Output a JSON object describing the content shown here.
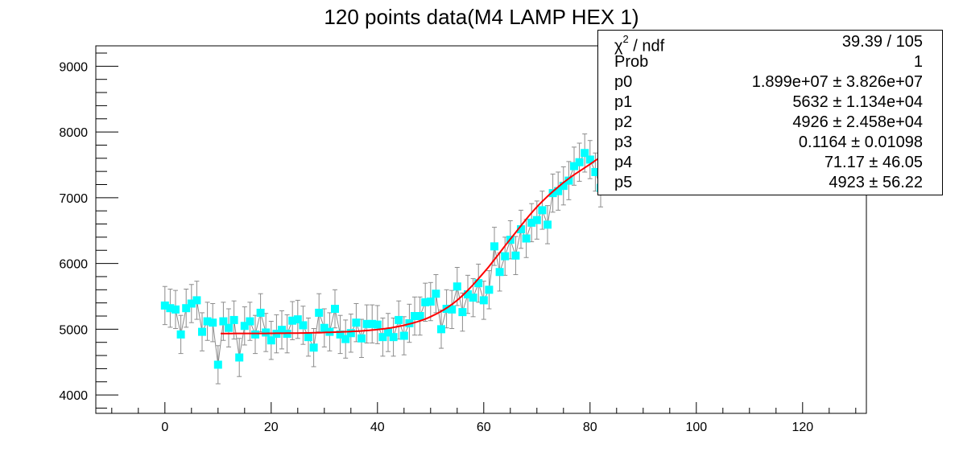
{
  "chart_data": {
    "type": "scatter",
    "title": "120 points data(M4 LAMP HEX 1)",
    "xlabel": "",
    "ylabel": "",
    "xlim": [
      -13,
      132
    ],
    "ylim": [
      3720,
      9310
    ],
    "x_ticks": [
      0,
      20,
      40,
      60,
      80,
      100,
      120
    ],
    "y_ticks": [
      4000,
      5000,
      6000,
      7000,
      8000,
      9000
    ],
    "grid": false,
    "colors": {
      "marker": "#00ffff",
      "error_bar": "#8c8c8c",
      "fit": "#ff0000"
    },
    "series": [
      {
        "x": [
          0,
          1,
          2,
          3,
          4,
          5,
          6,
          7,
          8,
          9,
          10,
          11,
          12,
          13,
          14,
          15,
          16,
          17,
          18,
          19,
          20,
          21,
          22,
          23,
          24,
          25,
          26,
          27,
          28,
          29,
          30,
          31,
          32,
          33,
          34,
          35,
          36,
          37,
          38,
          39,
          40,
          41,
          42,
          43,
          44,
          45,
          46,
          47,
          48,
          49,
          50,
          51,
          52,
          53,
          54,
          55,
          56,
          57,
          58,
          59,
          60,
          61,
          62,
          63,
          64,
          65,
          66,
          67,
          68,
          69,
          70,
          71,
          72,
          73,
          74,
          75,
          76,
          77,
          78,
          79,
          80,
          81,
          82
        ],
        "y": [
          5360,
          5320,
          5300,
          4920,
          5320,
          5390,
          5440,
          4960,
          5120,
          5100,
          4460,
          5120,
          5020,
          5140,
          4570,
          5050,
          5120,
          4920,
          5250,
          4950,
          4830,
          4930,
          4990,
          4930,
          5130,
          5150,
          5060,
          4880,
          4720,
          5250,
          5020,
          4960,
          5310,
          4920,
          4850,
          4940,
          5100,
          4860,
          5080,
          5080,
          5070,
          4880,
          4950,
          4880,
          5140,
          4900,
          5090,
          5200,
          5200,
          5410,
          5420,
          5540,
          5000,
          5310,
          5300,
          5650,
          5260,
          5530,
          5480,
          5700,
          5440,
          5600,
          6260,
          5870,
          6110,
          6360,
          6120,
          6520,
          6380,
          6620,
          6660,
          6810,
          6590,
          7070,
          7100,
          7180,
          7260,
          7480,
          7540,
          7680,
          7580,
          7390,
          7150
        ],
        "error": 290
      }
    ],
    "fit": {
      "x_start": 10.5,
      "x_end": 82,
      "x": [
        10.5,
        20,
        30,
        40,
        45,
        50,
        55,
        60,
        65,
        70,
        75,
        80,
        82
      ],
      "y": [
        4935,
        4937,
        4950,
        4995,
        5060,
        5190,
        5440,
        5860,
        6370,
        6860,
        7230,
        7510,
        7620
      ]
    },
    "stats": [
      {
        "key": "χ² / ndf",
        "value": "39.39 / 105"
      },
      {
        "key": "Prob",
        "value": "1"
      },
      {
        "key": "p0",
        "value": "1.899e+07 ± 3.826e+07"
      },
      {
        "key": "p1",
        "value": "5632 ± 1.134e+04"
      },
      {
        "key": "p2",
        "value": "4926 ± 2.458e+04"
      },
      {
        "key": "p3",
        "value": "0.1164 ± 0.01098"
      },
      {
        "key": "p4",
        "value": "71.17 ± 46.05"
      },
      {
        "key": "p5",
        "value": "4923 ± 56.22"
      }
    ]
  }
}
